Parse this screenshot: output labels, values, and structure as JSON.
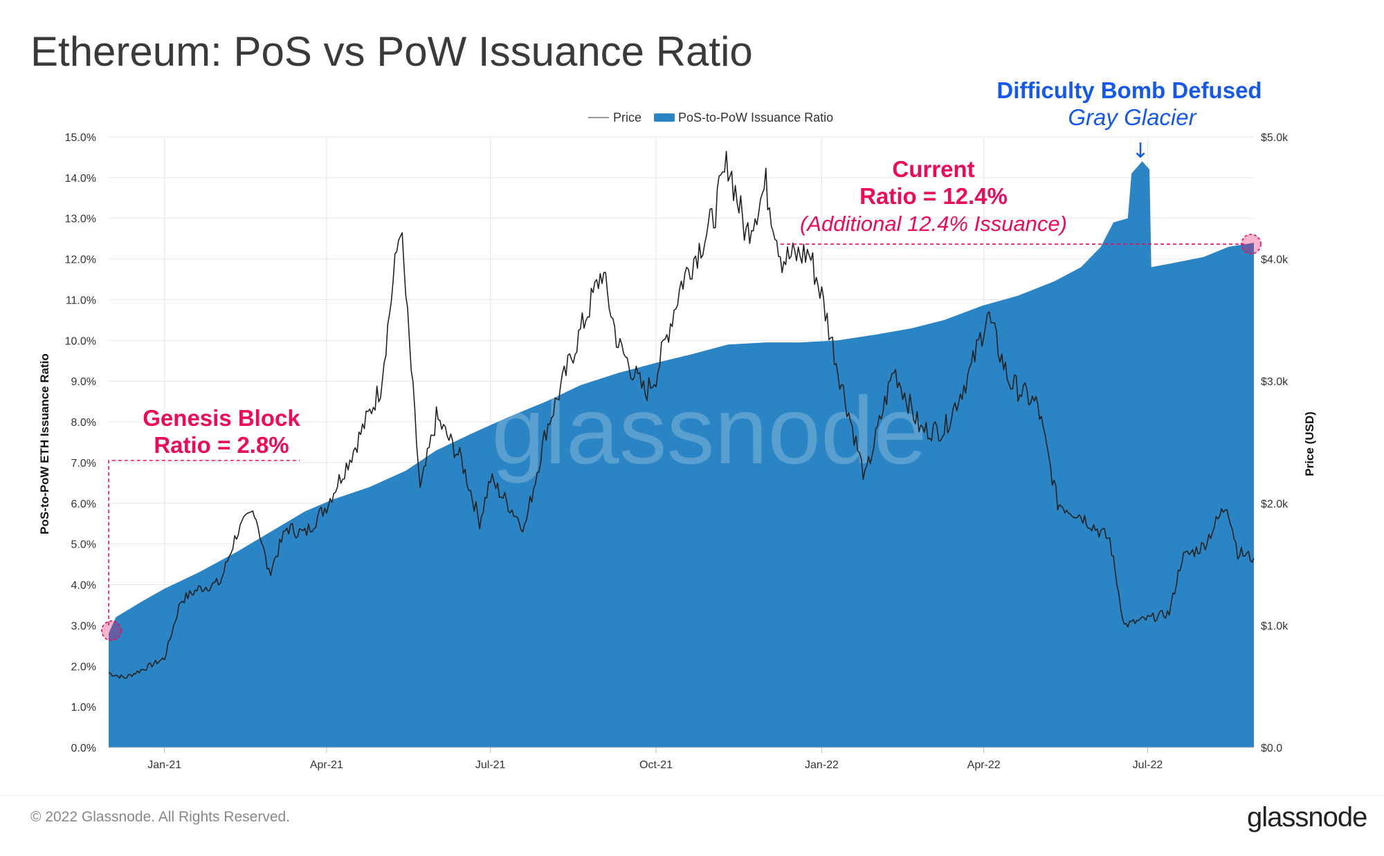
{
  "title": "Ethereum: PoS vs PoW Issuance Ratio",
  "footer": {
    "copyright": "© 2022 Glassnode. All Rights Reserved.",
    "brand": "glassnode"
  },
  "watermark": "glassnode",
  "colors": {
    "ratio_fill": "#2b84c3",
    "price_line": "#222222",
    "annotation_pink": "#f0085a",
    "annotation_blue": "#1558f0",
    "grid": "#e6e6e6"
  },
  "chart_data": {
    "type": "area",
    "title": "Ethereum: PoS vs PoW Issuance Ratio",
    "legend": [
      {
        "name": "Price",
        "marker": "line"
      },
      {
        "name": "PoS-to-PoW Issuance Ratio",
        "marker": "area"
      }
    ],
    "x_axis": {
      "type": "date",
      "range": [
        "2020-12-01",
        "2022-08-29"
      ],
      "ticks": [
        {
          "label": "Jan-21",
          "date": "2021-01-01"
        },
        {
          "label": "Apr-21",
          "date": "2021-04-01"
        },
        {
          "label": "Jul-21",
          "date": "2021-07-01"
        },
        {
          "label": "Oct-21",
          "date": "2021-10-01"
        },
        {
          "label": "Jan-22",
          "date": "2022-01-01"
        },
        {
          "label": "Apr-22",
          "date": "2022-04-01"
        },
        {
          "label": "Jul-22",
          "date": "2022-07-01"
        }
      ]
    },
    "y_left": {
      "label": "PoS-to-PoW ETH Issuance Ratio",
      "range": [
        0,
        15
      ],
      "ticks": [
        "0.0%",
        "1.0%",
        "2.0%",
        "3.0%",
        "4.0%",
        "5.0%",
        "6.0%",
        "7.0%",
        "8.0%",
        "9.0%",
        "10.0%",
        "11.0%",
        "12.0%",
        "13.0%",
        "14.0%",
        "15.0%"
      ]
    },
    "y_right": {
      "label": "Price (USD)",
      "range": [
        0,
        5000
      ],
      "ticks": [
        "$0.0",
        "$1.0k",
        "$2.0k",
        "$3.0k",
        "$4.0k",
        "$5.0k"
      ]
    },
    "series": [
      {
        "name": "PoS-to-PoW Issuance Ratio",
        "axis": "left",
        "unit": "%",
        "points": [
          [
            "2020-12-01",
            0
          ],
          [
            "2020-12-01",
            2.8
          ],
          [
            "2020-12-05",
            3.2
          ],
          [
            "2020-12-20",
            3.6
          ],
          [
            "2021-01-01",
            3.9
          ],
          [
            "2021-01-20",
            4.3
          ],
          [
            "2021-02-10",
            4.8
          ],
          [
            "2021-03-01",
            5.3
          ],
          [
            "2021-03-20",
            5.8
          ],
          [
            "2021-04-05",
            6.1
          ],
          [
            "2021-04-25",
            6.4
          ],
          [
            "2021-05-15",
            6.8
          ],
          [
            "2021-06-01",
            7.3
          ],
          [
            "2021-06-20",
            7.7
          ],
          [
            "2021-07-10",
            8.1
          ],
          [
            "2021-08-01",
            8.5
          ],
          [
            "2021-08-20",
            8.9
          ],
          [
            "2021-09-10",
            9.2
          ],
          [
            "2021-10-01",
            9.45
          ],
          [
            "2021-10-20",
            9.65
          ],
          [
            "2021-11-10",
            9.9
          ],
          [
            "2021-12-01",
            9.95
          ],
          [
            "2021-12-20",
            9.95
          ],
          [
            "2022-01-10",
            10.0
          ],
          [
            "2022-02-01",
            10.15
          ],
          [
            "2022-02-20",
            10.3
          ],
          [
            "2022-03-10",
            10.5
          ],
          [
            "2022-03-31",
            10.85
          ],
          [
            "2022-04-20",
            11.1
          ],
          [
            "2022-05-10",
            11.45
          ],
          [
            "2022-05-25",
            11.8
          ],
          [
            "2022-06-05",
            12.3
          ],
          [
            "2022-06-12",
            12.9
          ],
          [
            "2022-06-20",
            13.0
          ],
          [
            "2022-06-22",
            14.1
          ],
          [
            "2022-06-28",
            14.4
          ],
          [
            "2022-07-02",
            14.2
          ],
          [
            "2022-07-03",
            11.8
          ],
          [
            "2022-07-15",
            11.9
          ],
          [
            "2022-08-01",
            12.05
          ],
          [
            "2022-08-15",
            12.3
          ],
          [
            "2022-08-29",
            12.4
          ],
          [
            "2022-08-29",
            0
          ]
        ]
      },
      {
        "name": "Price",
        "axis": "right",
        "unit": "USD",
        "points": [
          [
            "2020-12-01",
            610
          ],
          [
            "2020-12-10",
            570
          ],
          [
            "2020-12-20",
            640
          ],
          [
            "2021-01-01",
            730
          ],
          [
            "2021-01-10",
            1200
          ],
          [
            "2021-01-20",
            1300
          ],
          [
            "2021-02-01",
            1350
          ],
          [
            "2021-02-10",
            1750
          ],
          [
            "2021-02-20",
            1950
          ],
          [
            "2021-02-28",
            1420
          ],
          [
            "2021-03-10",
            1800
          ],
          [
            "2021-03-20",
            1750
          ],
          [
            "2021-04-01",
            1980
          ],
          [
            "2021-04-15",
            2400
          ],
          [
            "2021-05-01",
            2950
          ],
          [
            "2021-05-12",
            4300
          ],
          [
            "2021-05-23",
            2100
          ],
          [
            "2021-06-01",
            2700
          ],
          [
            "2021-06-15",
            2350
          ],
          [
            "2021-06-25",
            1850
          ],
          [
            "2021-07-01",
            2200
          ],
          [
            "2021-07-20",
            1800
          ],
          [
            "2021-08-01",
            2600
          ],
          [
            "2021-08-15",
            3200
          ],
          [
            "2021-09-01",
            3900
          ],
          [
            "2021-09-10",
            3300
          ],
          [
            "2021-09-25",
            2900
          ],
          [
            "2021-10-01",
            3050
          ],
          [
            "2021-10-15",
            3800
          ],
          [
            "2021-11-01",
            4300
          ],
          [
            "2021-11-10",
            4800
          ],
          [
            "2021-11-20",
            4200
          ],
          [
            "2021-12-01",
            4600
          ],
          [
            "2021-12-10",
            4000
          ],
          [
            "2021-12-25",
            4050
          ],
          [
            "2022-01-01",
            3700
          ],
          [
            "2022-01-10",
            3100
          ],
          [
            "2022-01-25",
            2200
          ],
          [
            "2022-02-10",
            3100
          ],
          [
            "2022-02-25",
            2600
          ],
          [
            "2022-03-10",
            2600
          ],
          [
            "2022-03-25",
            3100
          ],
          [
            "2022-04-03",
            3550
          ],
          [
            "2022-04-15",
            3000
          ],
          [
            "2022-05-01",
            2800
          ],
          [
            "2022-05-12",
            2000
          ],
          [
            "2022-05-25",
            1900
          ],
          [
            "2022-06-10",
            1700
          ],
          [
            "2022-06-18",
            1000
          ],
          [
            "2022-06-30",
            1050
          ],
          [
            "2022-07-13",
            1100
          ],
          [
            "2022-07-20",
            1550
          ],
          [
            "2022-08-01",
            1650
          ],
          [
            "2022-08-14",
            2000
          ],
          [
            "2022-08-20",
            1600
          ],
          [
            "2022-08-29",
            1550
          ]
        ]
      }
    ],
    "annotations": [
      {
        "id": "genesis",
        "lines": [
          "Genesis Block",
          "Ratio = 2.8%"
        ],
        "date": "2020-12-01",
        "value": 2.8
      },
      {
        "id": "current",
        "lines": [
          "Current",
          "Ratio = 12.4%"
        ],
        "subtitle": "(Additional 12.4% Issuance)",
        "date": "2022-08-29",
        "value": 12.4
      },
      {
        "id": "bomb",
        "lines": [
          "Difficulty Bomb Defused"
        ],
        "subtitle": "Gray Glacier",
        "arrow": "↓",
        "date": "2022-06-28",
        "value": 14.4
      }
    ]
  }
}
